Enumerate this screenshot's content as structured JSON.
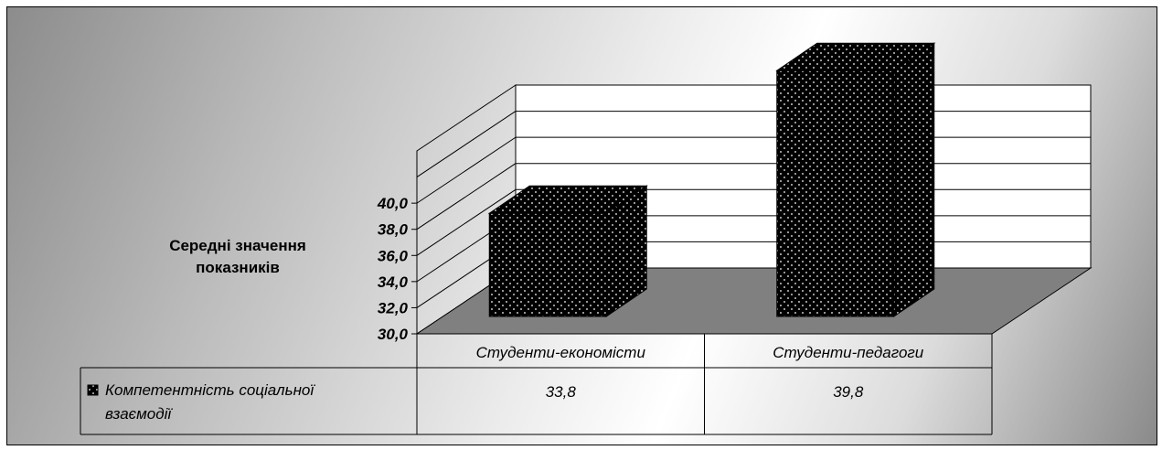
{
  "chart_data": {
    "type": "bar",
    "ylabel": "Середні значення показників",
    "ylabel_lines": [
      "Середні значення",
      "показників"
    ],
    "ylim": [
      30.0,
      40.0
    ],
    "yticks": [
      "30,0",
      "32,0",
      "34,0",
      "36,0",
      "38,0",
      "40,0"
    ],
    "categories": [
      "Студенти-економісти",
      "Студенти-педагоги"
    ],
    "series": [
      {
        "name": "Компетентність соціальної взаємодії",
        "name_lines": [
          "Компетентність соціальної",
          "взаємодії"
        ],
        "values": [
          33.8,
          39.8
        ],
        "value_labels": [
          "33,8",
          "39,8"
        ]
      }
    ],
    "data_table": true,
    "grid": true,
    "colors": {
      "bar": "#000000",
      "bar_dots": "#ffffff",
      "floor": "#808080",
      "wall": "#ffffff"
    }
  }
}
